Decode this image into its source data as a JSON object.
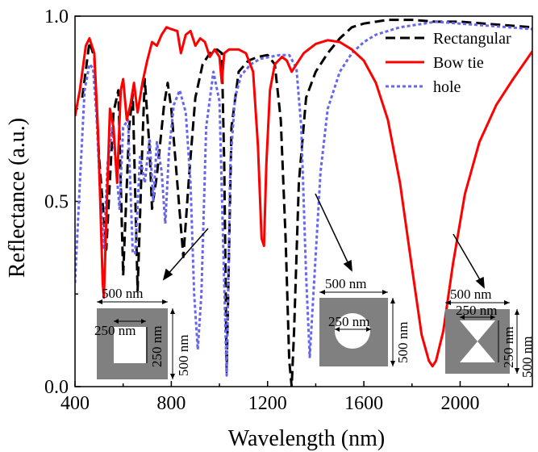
{
  "chart_data": {
    "type": "line",
    "title": "",
    "xlabel": "Wavelength (nm)",
    "ylabel": "Reflectance (a.u.)",
    "xlim": [
      400,
      2300
    ],
    "ylim": [
      0,
      1.0
    ],
    "x_ticks": [
      400,
      800,
      1200,
      1600,
      2000
    ],
    "x_tick_labels": [
      "400",
      "800",
      "1200",
      "1600",
      "2000"
    ],
    "y_ticks": [
      0.0,
      0.5,
      1.0
    ],
    "y_tick_labels": [
      "0.0",
      "0.5",
      "1.0"
    ],
    "grid": false,
    "legend_position": "top-right",
    "series": [
      {
        "name": "Rectangular",
        "color": "#000000",
        "style": "dashed",
        "points": [
          [
            430,
            0.78
          ],
          [
            460,
            0.93
          ],
          [
            480,
            0.89
          ],
          [
            500,
            0.62
          ],
          [
            530,
            0.37
          ],
          [
            560,
            0.74
          ],
          [
            580,
            0.8
          ],
          [
            600,
            0.3
          ],
          [
            625,
            0.7
          ],
          [
            640,
            0.79
          ],
          [
            660,
            0.26
          ],
          [
            680,
            0.66
          ],
          [
            690,
            0.83
          ],
          [
            710,
            0.64
          ],
          [
            720,
            0.48
          ],
          [
            740,
            0.57
          ],
          [
            770,
            0.76
          ],
          [
            785,
            0.82
          ],
          [
            800,
            0.75
          ],
          [
            825,
            0.55
          ],
          [
            850,
            0.35
          ],
          [
            875,
            0.58
          ],
          [
            900,
            0.78
          ],
          [
            930,
            0.87
          ],
          [
            960,
            0.9
          ],
          [
            990,
            0.91
          ],
          [
            1010,
            0.9
          ],
          [
            1020,
            0.6
          ],
          [
            1030,
            0.04
          ],
          [
            1050,
            0.7
          ],
          [
            1080,
            0.85
          ],
          [
            1120,
            0.88
          ],
          [
            1160,
            0.89
          ],
          [
            1200,
            0.895
          ],
          [
            1230,
            0.87
          ],
          [
            1255,
            0.72
          ],
          [
            1275,
            0.4
          ],
          [
            1290,
            0.07
          ],
          [
            1300,
            0.0
          ],
          [
            1310,
            0.15
          ],
          [
            1330,
            0.55
          ],
          [
            1360,
            0.78
          ],
          [
            1400,
            0.85
          ],
          [
            1450,
            0.9
          ],
          [
            1500,
            0.94
          ],
          [
            1550,
            0.97
          ],
          [
            1600,
            0.98
          ],
          [
            1700,
            0.99
          ],
          [
            1800,
            0.99
          ],
          [
            1900,
            0.985
          ],
          [
            2000,
            0.985
          ],
          [
            2100,
            0.98
          ],
          [
            2200,
            0.975
          ],
          [
            2300,
            0.97
          ]
        ]
      },
      {
        "name": "Bow tie",
        "color": "#ff0000",
        "style": "solid",
        "points": [
          [
            400,
            0.73
          ],
          [
            420,
            0.8
          ],
          [
            445,
            0.92
          ],
          [
            460,
            0.94
          ],
          [
            480,
            0.9
          ],
          [
            495,
            0.7
          ],
          [
            505,
            0.5
          ],
          [
            515,
            0.28
          ],
          [
            520,
            0.24
          ],
          [
            530,
            0.45
          ],
          [
            545,
            0.75
          ],
          [
            560,
            0.7
          ],
          [
            575,
            0.55
          ],
          [
            590,
            0.8
          ],
          [
            600,
            0.83
          ],
          [
            615,
            0.72
          ],
          [
            630,
            0.76
          ],
          [
            645,
            0.82
          ],
          [
            660,
            0.74
          ],
          [
            680,
            0.82
          ],
          [
            700,
            0.88
          ],
          [
            720,
            0.93
          ],
          [
            740,
            0.92
          ],
          [
            760,
            0.95
          ],
          [
            780,
            0.97
          ],
          [
            800,
            0.965
          ],
          [
            825,
            0.96
          ],
          [
            840,
            0.9
          ],
          [
            860,
            0.95
          ],
          [
            880,
            0.96
          ],
          [
            900,
            0.92
          ],
          [
            920,
            0.94
          ],
          [
            940,
            0.93
          ],
          [
            960,
            0.89
          ],
          [
            980,
            0.91
          ],
          [
            1000,
            0.89
          ],
          [
            1010,
            0.82
          ],
          [
            1020,
            0.9
          ],
          [
            1040,
            0.91
          ],
          [
            1080,
            0.91
          ],
          [
            1110,
            0.9
          ],
          [
            1140,
            0.85
          ],
          [
            1160,
            0.65
          ],
          [
            1175,
            0.4
          ],
          [
            1185,
            0.38
          ],
          [
            1195,
            0.6
          ],
          [
            1210,
            0.8
          ],
          [
            1230,
            0.87
          ],
          [
            1260,
            0.89
          ],
          [
            1280,
            0.88
          ],
          [
            1300,
            0.85
          ],
          [
            1320,
            0.87
          ],
          [
            1350,
            0.9
          ],
          [
            1400,
            0.925
          ],
          [
            1450,
            0.935
          ],
          [
            1500,
            0.93
          ],
          [
            1550,
            0.91
          ],
          [
            1600,
            0.88
          ],
          [
            1650,
            0.82
          ],
          [
            1700,
            0.72
          ],
          [
            1750,
            0.55
          ],
          [
            1800,
            0.32
          ],
          [
            1840,
            0.14
          ],
          [
            1870,
            0.07
          ],
          [
            1885,
            0.055
          ],
          [
            1900,
            0.07
          ],
          [
            1930,
            0.15
          ],
          [
            1970,
            0.33
          ],
          [
            2020,
            0.52
          ],
          [
            2080,
            0.66
          ],
          [
            2150,
            0.76
          ],
          [
            2220,
            0.83
          ],
          [
            2300,
            0.905
          ]
        ]
      },
      {
        "name": "hole",
        "color": "#6666ee",
        "style": "dotted",
        "points": [
          [
            400,
            0.28
          ],
          [
            420,
            0.55
          ],
          [
            440,
            0.8
          ],
          [
            460,
            0.87
          ],
          [
            475,
            0.86
          ],
          [
            490,
            0.72
          ],
          [
            505,
            0.52
          ],
          [
            520,
            0.37
          ],
          [
            535,
            0.6
          ],
          [
            555,
            0.7
          ],
          [
            570,
            0.6
          ],
          [
            585,
            0.48
          ],
          [
            600,
            0.7
          ],
          [
            620,
            0.72
          ],
          [
            640,
            0.36
          ],
          [
            650,
            0.36
          ],
          [
            670,
            0.62
          ],
          [
            690,
            0.55
          ],
          [
            710,
            0.67
          ],
          [
            725,
            0.5
          ],
          [
            740,
            0.66
          ],
          [
            760,
            0.58
          ],
          [
            775,
            0.44
          ],
          [
            790,
            0.63
          ],
          [
            810,
            0.76
          ],
          [
            835,
            0.8
          ],
          [
            860,
            0.74
          ],
          [
            880,
            0.55
          ],
          [
            895,
            0.25
          ],
          [
            910,
            0.1
          ],
          [
            925,
            0.25
          ],
          [
            945,
            0.7
          ],
          [
            975,
            0.85
          ],
          [
            1000,
            0.77
          ],
          [
            1015,
            0.4
          ],
          [
            1030,
            0.03
          ],
          [
            1045,
            0.6
          ],
          [
            1065,
            0.78
          ],
          [
            1090,
            0.84
          ],
          [
            1130,
            0.87
          ],
          [
            1170,
            0.885
          ],
          [
            1210,
            0.89
          ],
          [
            1250,
            0.895
          ],
          [
            1290,
            0.895
          ],
          [
            1320,
            0.86
          ],
          [
            1340,
            0.7
          ],
          [
            1360,
            0.3
          ],
          [
            1375,
            0.08
          ],
          [
            1395,
            0.3
          ],
          [
            1420,
            0.58
          ],
          [
            1450,
            0.75
          ],
          [
            1500,
            0.85
          ],
          [
            1550,
            0.9
          ],
          [
            1600,
            0.93
          ],
          [
            1650,
            0.95
          ],
          [
            1700,
            0.96
          ],
          [
            1750,
            0.97
          ],
          [
            1800,
            0.975
          ],
          [
            1900,
            0.985
          ],
          [
            2000,
            0.98
          ],
          [
            2100,
            0.975
          ],
          [
            2200,
            0.97
          ],
          [
            2300,
            0.965
          ]
        ]
      }
    ],
    "annotations": {
      "inset_rect_outer": "500 nm",
      "inset_rect_inner_h": "250 nm",
      "inset_rect_inner_v": "250 nm",
      "inset_rect_side": "500 nm",
      "inset_hole_outer": "500 nm",
      "inset_hole_diameter": "250 nm",
      "inset_hole_side": "500 nm",
      "inset_bow_outer": "500 nm",
      "inset_bow_inner": "250 nm",
      "inset_bow_inner_v": "250 nm",
      "inset_bow_side": "500 nm"
    }
  }
}
